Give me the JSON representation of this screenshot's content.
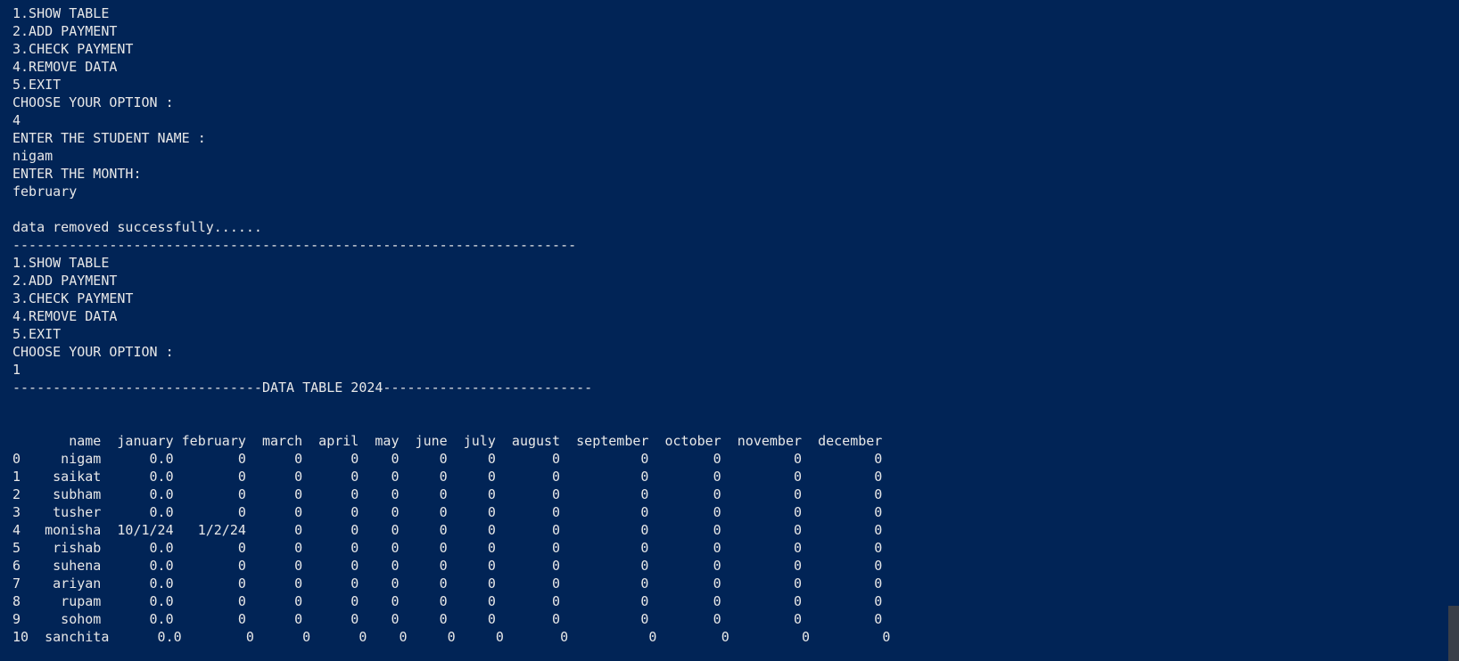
{
  "terminal": {
    "lines": [
      "1.SHOW TABLE",
      "2.ADD PAYMENT",
      "3.CHECK PAYMENT",
      "4.REMOVE DATA",
      "5.EXIT",
      "CHOOSE YOUR OPTION :",
      "4",
      "ENTER THE STUDENT NAME :",
      "nigam",
      "ENTER THE MONTH:",
      "february",
      "",
      "data removed successfully......",
      "----------------------------------------------------------------------",
      "1.SHOW TABLE",
      "2.ADD PAYMENT",
      "3.CHECK PAYMENT",
      "4.REMOVE DATA",
      "5.EXIT",
      "CHOOSE YOUR OPTION :",
      "1",
      "-------------------------------DATA TABLE 2024--------------------------",
      "",
      "",
      "       name  january february  march  april  may  june  july  august  september  october  november  december",
      "0     nigam      0.0        0      0      0    0     0     0       0          0        0         0         0",
      "1    saikat      0.0        0      0      0    0     0     0       0          0        0         0         0",
      "2    subham      0.0        0      0      0    0     0     0       0          0        0         0         0",
      "3    tusher      0.0        0      0      0    0     0     0       0          0        0         0         0",
      "4   monisha  10/1/24   1/2/24      0      0    0     0     0       0          0        0         0         0",
      "5    rishab      0.0        0      0      0    0     0     0       0          0        0         0         0",
      "6    suhena      0.0        0      0      0    0     0     0       0          0        0         0         0",
      "7    ariyan      0.0        0      0      0    0     0     0       0          0        0         0         0",
      "8     rupam      0.0        0      0      0    0     0     0       0          0        0         0         0",
      "9     sohom      0.0        0      0      0    0     0     0       0          0        0         0         0",
      "10  sanchita      0.0        0      0      0    0     0     0       0          0        0         0         0"
    ]
  },
  "colors": {
    "background": "#012456",
    "text": "#e8e8e8",
    "scrollbar_thumb": "#3a3f48"
  }
}
